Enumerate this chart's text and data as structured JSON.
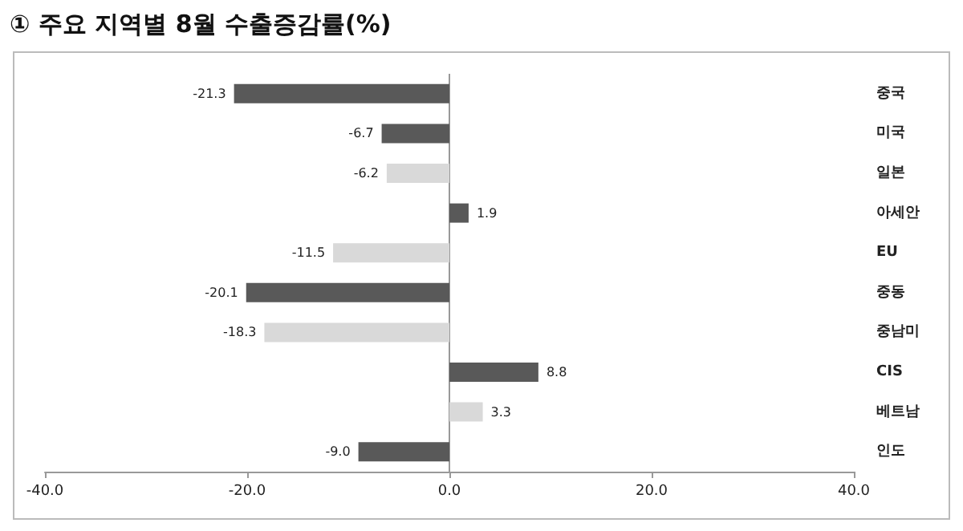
{
  "chart_data": {
    "type": "bar",
    "orientation": "horizontal",
    "title": "① 주요 지역별 8월 수출증감률(%)",
    "categories": [
      "중국",
      "미국",
      "일본",
      "아세안",
      "EU",
      "중동",
      "중남미",
      "CIS",
      "베트남",
      "인도"
    ],
    "values": [
      -21.3,
      -6.7,
      -6.2,
      1.9,
      -11.5,
      -20.1,
      -18.3,
      8.8,
      3.3,
      -9.0
    ],
    "value_labels": [
      "-21.3",
      "-6.7",
      "-6.2",
      "1.9",
      "-11.5",
      "-20.1",
      "-18.3",
      "8.8",
      "3.3",
      "-9.0"
    ],
    "colors": [
      "#595959",
      "#595959",
      "#d9d9d9",
      "#595959",
      "#d9d9d9",
      "#595959",
      "#d9d9d9",
      "#595959",
      "#d9d9d9",
      "#595959"
    ],
    "xlim": [
      -40,
      40
    ],
    "xticks": [
      {
        "value": -40,
        "label": "-40.0"
      },
      {
        "value": -20,
        "label": "-20.0"
      },
      {
        "value": 0,
        "label": "0.0"
      },
      {
        "value": 20,
        "label": "20.0"
      },
      {
        "value": 40,
        "label": "40.0"
      }
    ],
    "xlabel": null
  }
}
